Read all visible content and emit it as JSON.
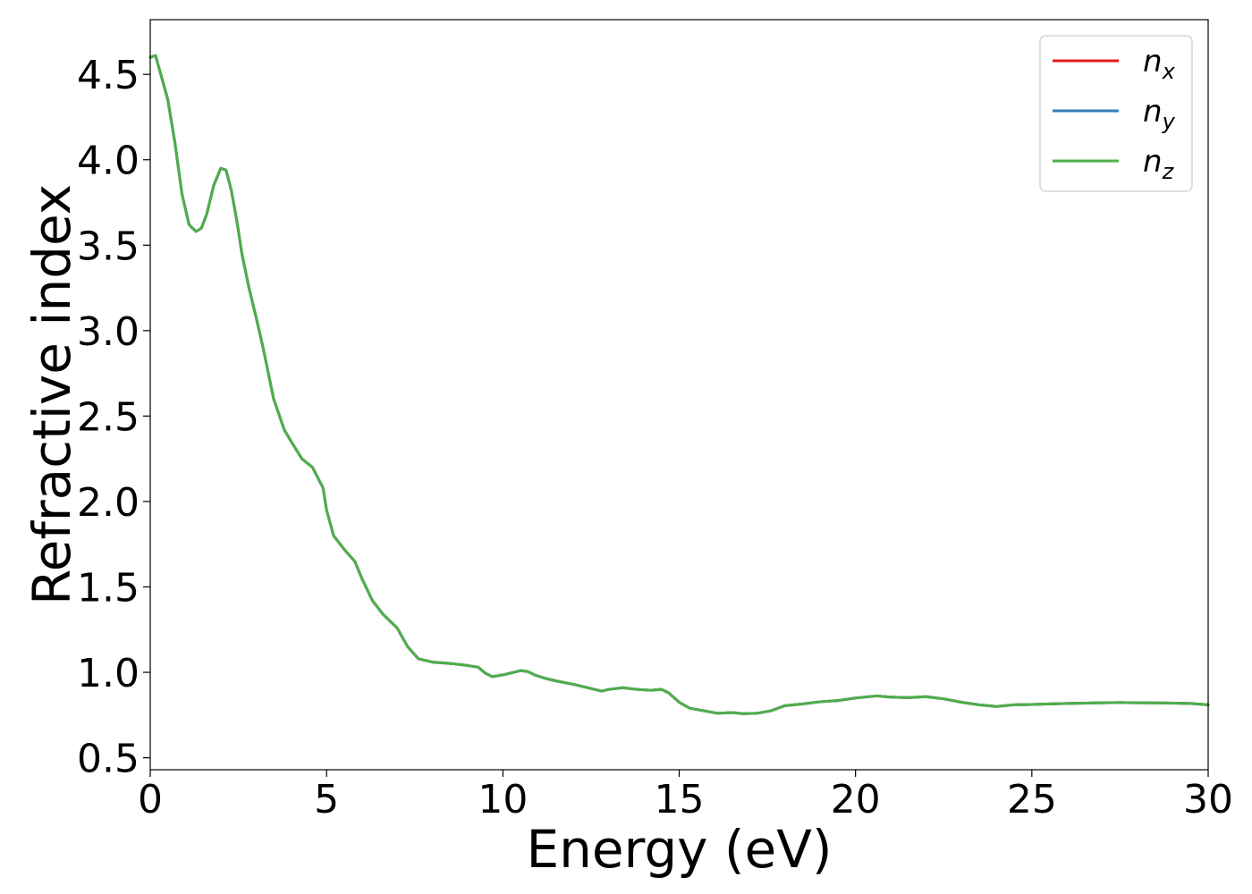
{
  "chart_data": {
    "type": "line",
    "xlabel": "Energy (eV)",
    "ylabel": "Refractive index",
    "xlim": [
      0,
      30
    ],
    "ylim": [
      0.43,
      4.82
    ],
    "xticks": [
      0,
      5,
      10,
      15,
      20,
      25,
      30
    ],
    "xtick_labels": [
      "0",
      "5",
      "10",
      "15",
      "20",
      "25",
      "30"
    ],
    "yticks": [
      0.5,
      1.0,
      1.5,
      2.0,
      2.5,
      3.0,
      3.5,
      4.0,
      4.5
    ],
    "ytick_labels": [
      "0.5",
      "1.0",
      "1.5",
      "2.0",
      "2.5",
      "3.0",
      "3.5",
      "4.0",
      "4.5"
    ],
    "grid": false,
    "legend_position": "top-right",
    "x": [
      0.0,
      0.15,
      0.3,
      0.5,
      0.7,
      0.9,
      1.1,
      1.3,
      1.45,
      1.6,
      1.8,
      2.0,
      2.15,
      2.3,
      2.45,
      2.6,
      2.8,
      3.0,
      3.2,
      3.5,
      3.8,
      4.0,
      4.3,
      4.6,
      4.9,
      5.0,
      5.2,
      5.5,
      5.8,
      6.0,
      6.3,
      6.6,
      7.0,
      7.3,
      7.6,
      7.8,
      8.0,
      8.3,
      8.6,
      9.0,
      9.3,
      9.5,
      9.7,
      10.0,
      10.3,
      10.5,
      10.7,
      10.9,
      11.2,
      11.5,
      12.0,
      12.5,
      12.8,
      13.0,
      13.4,
      13.8,
      14.2,
      14.5,
      14.7,
      15.0,
      15.3,
      15.7,
      16.1,
      16.5,
      16.8,
      17.2,
      17.6,
      18.0,
      18.5,
      19.0,
      19.5,
      20.0,
      20.6,
      21.0,
      21.5,
      22.0,
      22.5,
      23.0,
      23.5,
      24.0,
      24.5,
      25.0,
      25.5,
      26.0,
      26.5,
      27.0,
      27.5,
      28.0,
      28.5,
      29.0,
      29.5,
      30.0
    ],
    "series": [
      {
        "name": "n_x",
        "label_base": "n",
        "label_sub": "x",
        "color": "#e41a1c",
        "values": [
          4.6,
          4.61,
          4.5,
          4.35,
          4.1,
          3.8,
          3.62,
          3.58,
          3.6,
          3.68,
          3.85,
          3.95,
          3.94,
          3.82,
          3.65,
          3.45,
          3.25,
          3.08,
          2.9,
          2.6,
          2.42,
          2.35,
          2.25,
          2.2,
          2.08,
          1.95,
          1.8,
          1.72,
          1.65,
          1.55,
          1.42,
          1.34,
          1.26,
          1.15,
          1.08,
          1.07,
          1.06,
          1.055,
          1.05,
          1.04,
          1.03,
          0.995,
          0.975,
          0.985,
          1.0,
          1.01,
          1.005,
          0.985,
          0.965,
          0.95,
          0.93,
          0.905,
          0.89,
          0.9,
          0.91,
          0.9,
          0.895,
          0.9,
          0.88,
          0.825,
          0.79,
          0.775,
          0.76,
          0.765,
          0.758,
          0.76,
          0.775,
          0.805,
          0.815,
          0.828,
          0.835,
          0.85,
          0.862,
          0.855,
          0.852,
          0.858,
          0.845,
          0.825,
          0.81,
          0.8,
          0.81,
          0.812,
          0.815,
          0.818,
          0.82,
          0.822,
          0.823,
          0.822,
          0.821,
          0.82,
          0.818,
          0.81
        ]
      },
      {
        "name": "n_y",
        "label_base": "n",
        "label_sub": "y",
        "color": "#377eb8",
        "values": [
          4.6,
          4.61,
          4.5,
          4.35,
          4.1,
          3.8,
          3.62,
          3.58,
          3.6,
          3.68,
          3.85,
          3.95,
          3.94,
          3.82,
          3.65,
          3.45,
          3.25,
          3.08,
          2.9,
          2.6,
          2.42,
          2.35,
          2.25,
          2.2,
          2.08,
          1.95,
          1.8,
          1.72,
          1.65,
          1.55,
          1.42,
          1.34,
          1.26,
          1.15,
          1.08,
          1.07,
          1.06,
          1.055,
          1.05,
          1.04,
          1.03,
          0.995,
          0.975,
          0.985,
          1.0,
          1.01,
          1.005,
          0.985,
          0.965,
          0.95,
          0.93,
          0.905,
          0.89,
          0.9,
          0.91,
          0.9,
          0.895,
          0.9,
          0.88,
          0.825,
          0.79,
          0.775,
          0.76,
          0.765,
          0.758,
          0.76,
          0.775,
          0.805,
          0.815,
          0.828,
          0.835,
          0.85,
          0.862,
          0.855,
          0.852,
          0.858,
          0.845,
          0.825,
          0.81,
          0.8,
          0.81,
          0.812,
          0.815,
          0.818,
          0.82,
          0.822,
          0.823,
          0.822,
          0.821,
          0.82,
          0.818,
          0.81
        ]
      },
      {
        "name": "n_z",
        "label_base": "n",
        "label_sub": "z",
        "color": "#4daf4a",
        "values": [
          4.6,
          4.61,
          4.5,
          4.35,
          4.1,
          3.8,
          3.62,
          3.58,
          3.6,
          3.68,
          3.85,
          3.95,
          3.94,
          3.82,
          3.65,
          3.45,
          3.25,
          3.08,
          2.9,
          2.6,
          2.42,
          2.35,
          2.25,
          2.2,
          2.08,
          1.95,
          1.8,
          1.72,
          1.65,
          1.55,
          1.42,
          1.34,
          1.26,
          1.15,
          1.08,
          1.07,
          1.06,
          1.055,
          1.05,
          1.04,
          1.03,
          0.995,
          0.975,
          0.985,
          1.0,
          1.01,
          1.005,
          0.985,
          0.965,
          0.95,
          0.93,
          0.905,
          0.89,
          0.9,
          0.91,
          0.9,
          0.895,
          0.9,
          0.88,
          0.825,
          0.79,
          0.775,
          0.76,
          0.765,
          0.758,
          0.76,
          0.775,
          0.805,
          0.815,
          0.828,
          0.835,
          0.85,
          0.862,
          0.855,
          0.852,
          0.858,
          0.845,
          0.825,
          0.81,
          0.8,
          0.81,
          0.812,
          0.815,
          0.818,
          0.82,
          0.822,
          0.823,
          0.822,
          0.821,
          0.82,
          0.818,
          0.81
        ]
      }
    ]
  }
}
